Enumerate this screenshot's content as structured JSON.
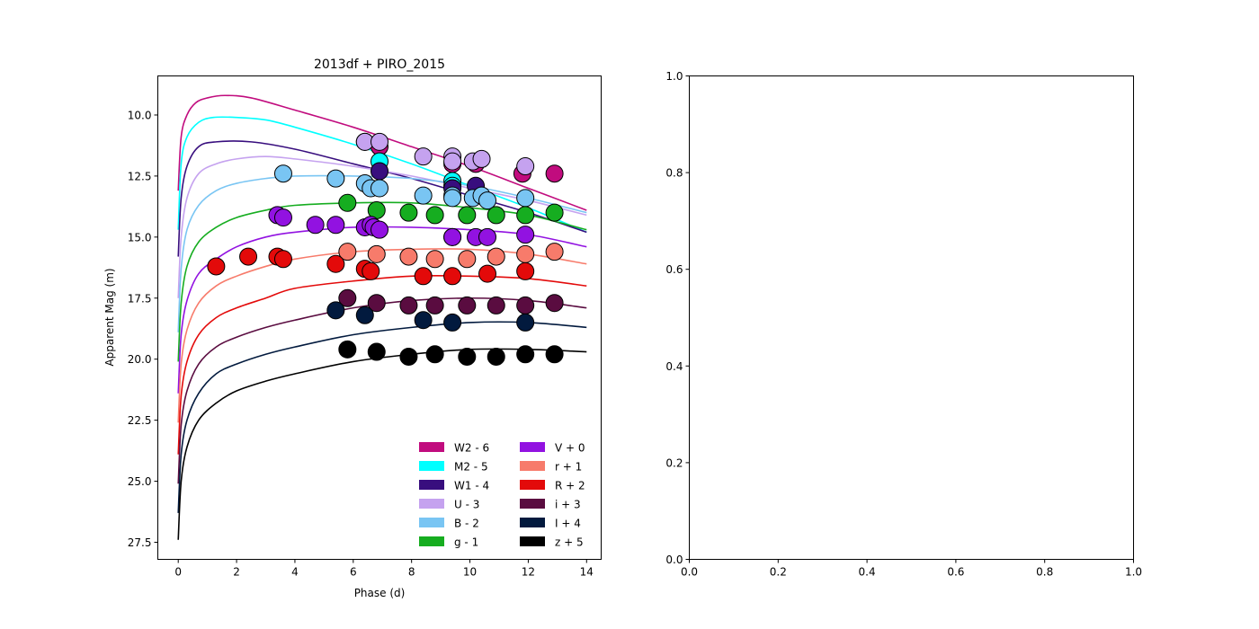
{
  "chart_data": [
    {
      "type": "line+scatter",
      "title": "2013df + PIRO_2015",
      "xlabel": "Phase (d)",
      "ylabel": "Apparent Mag (m)",
      "xlim": [
        -0.7,
        14.5
      ],
      "ylim": [
        28.2,
        8.4
      ],
      "y_inverted": true,
      "xticks": [
        0,
        2,
        4,
        6,
        8,
        10,
        12,
        14
      ],
      "yticks": [
        10.0,
        12.5,
        15.0,
        17.5,
        20.0,
        22.5,
        25.0,
        27.5
      ],
      "xtick_labels": [
        "0",
        "2",
        "4",
        "6",
        "8",
        "10",
        "12",
        "14"
      ],
      "ytick_labels": [
        "10.0",
        "12.5",
        "15.0",
        "17.5",
        "20.0",
        "22.5",
        "25.0",
        "27.5"
      ],
      "grid": false,
      "legend": {
        "placement": "lower-right",
        "columns": 2
      },
      "series": [
        {
          "name": "W2 - 6",
          "color": "#c10c7e",
          "model": [
            [
              0,
              13.1
            ],
            [
              0.1,
              10.9
            ],
            [
              0.3,
              10.0
            ],
            [
              0.6,
              9.5
            ],
            [
              1.0,
              9.3
            ],
            [
              1.6,
              9.2
            ],
            [
              2.5,
              9.3
            ],
            [
              4,
              9.8
            ],
            [
              6,
              10.5
            ],
            [
              8,
              11.3
            ],
            [
              10,
              12.1
            ],
            [
              12,
              13.0
            ],
            [
              14,
              13.9
            ]
          ],
          "points": [
            [
              6.4,
              11.1
            ],
            [
              6.9,
              11.3
            ],
            [
              9.4,
              12.0
            ],
            [
              10.2,
              12.0
            ],
            [
              11.8,
              12.4
            ],
            [
              12.9,
              12.4
            ]
          ]
        },
        {
          "name": "M2 - 5",
          "color": "#00ffff",
          "model": [
            [
              0,
              14.7
            ],
            [
              0.1,
              12.0
            ],
            [
              0.3,
              10.9
            ],
            [
              0.7,
              10.3
            ],
            [
              1.2,
              10.1
            ],
            [
              2,
              10.1
            ],
            [
              3,
              10.2
            ],
            [
              4,
              10.5
            ],
            [
              6,
              11.2
            ],
            [
              8,
              12.0
            ],
            [
              10,
              12.9
            ],
            [
              12,
              13.8
            ],
            [
              14,
              14.8
            ]
          ],
          "points": [
            [
              6.9,
              11.9
            ],
            [
              9.4,
              12.7
            ],
            [
              9.4,
              12.9
            ]
          ]
        },
        {
          "name": "W1 - 4",
          "color": "#380e7e",
          "model": [
            [
              0,
              15.8
            ],
            [
              0.1,
              13.4
            ],
            [
              0.3,
              12.1
            ],
            [
              0.7,
              11.3
            ],
            [
              1.3,
              11.1
            ],
            [
              2.5,
              11.1
            ],
            [
              4,
              11.4
            ],
            [
              6,
              12.0
            ],
            [
              8,
              12.6
            ],
            [
              10,
              13.3
            ],
            [
              12,
              14.0
            ],
            [
              14,
              14.8
            ]
          ],
          "points": [
            [
              6.9,
              12.3
            ],
            [
              9.4,
              13.0
            ],
            [
              10.2,
              12.9
            ]
          ]
        },
        {
          "name": "U - 3",
          "color": "#c5a2ef",
          "model": [
            [
              0,
              17.5
            ],
            [
              0.1,
              15.0
            ],
            [
              0.3,
              13.4
            ],
            [
              0.7,
              12.4
            ],
            [
              1.3,
              12.0
            ],
            [
              2,
              11.8
            ],
            [
              3,
              11.7
            ],
            [
              4,
              11.8
            ],
            [
              6,
              12.1
            ],
            [
              8,
              12.5
            ],
            [
              10,
              13.0
            ],
            [
              12,
              13.5
            ],
            [
              14,
              14.1
            ]
          ],
          "points": [
            [
              6.4,
              11.1
            ],
            [
              6.9,
              11.1
            ],
            [
              8.4,
              11.7
            ],
            [
              9.4,
              11.7
            ],
            [
              9.4,
              11.9
            ],
            [
              10.1,
              11.9
            ],
            [
              10.4,
              11.8
            ],
            [
              11.9,
              12.1
            ]
          ]
        },
        {
          "name": "B - 2",
          "color": "#79c5f3",
          "model": [
            [
              0,
              18.9
            ],
            [
              0.1,
              16.3
            ],
            [
              0.3,
              14.7
            ],
            [
              0.7,
              13.7
            ],
            [
              1.3,
              13.1
            ],
            [
              2,
              12.8
            ],
            [
              3,
              12.6
            ],
            [
              4,
              12.5
            ],
            [
              6,
              12.5
            ],
            [
              8,
              12.6
            ],
            [
              10,
              12.9
            ],
            [
              12,
              13.4
            ],
            [
              14,
              14.0
            ]
          ],
          "points": [
            [
              3.6,
              12.4
            ],
            [
              5.4,
              12.6
            ],
            [
              6.4,
              12.8
            ],
            [
              6.6,
              13.0
            ],
            [
              6.9,
              13.0
            ],
            [
              8.4,
              13.3
            ],
            [
              9.4,
              13.3
            ],
            [
              9.4,
              13.4
            ],
            [
              10.1,
              13.4
            ],
            [
              10.4,
              13.3
            ],
            [
              10.6,
              13.5
            ],
            [
              11.9,
              13.4
            ]
          ]
        },
        {
          "name": "g - 1",
          "color": "#16ad20",
          "model": [
            [
              0,
              20.1
            ],
            [
              0.1,
              17.7
            ],
            [
              0.3,
              16.2
            ],
            [
              0.7,
              15.2
            ],
            [
              1.3,
              14.6
            ],
            [
              2,
              14.2
            ],
            [
              3,
              13.9
            ],
            [
              4,
              13.7
            ],
            [
              6,
              13.6
            ],
            [
              8,
              13.6
            ],
            [
              10,
              13.8
            ],
            [
              12,
              14.1
            ],
            [
              14,
              14.7
            ]
          ],
          "points": [
            [
              5.8,
              13.6
            ],
            [
              6.8,
              13.9
            ],
            [
              7.9,
              14.0
            ],
            [
              8.8,
              14.1
            ],
            [
              9.9,
              14.1
            ],
            [
              10.9,
              14.1
            ],
            [
              11.9,
              14.1
            ],
            [
              12.9,
              14.0
            ]
          ]
        },
        {
          "name": "V + 0",
          "color": "#9212e1",
          "model": [
            [
              0,
              21.4
            ],
            [
              0.1,
              19.0
            ],
            [
              0.3,
              17.6
            ],
            [
              0.7,
              16.5
            ],
            [
              1.3,
              15.9
            ],
            [
              2,
              15.4
            ],
            [
              3,
              15.0
            ],
            [
              4,
              14.8
            ],
            [
              6,
              14.6
            ],
            [
              8,
              14.6
            ],
            [
              10,
              14.7
            ],
            [
              12,
              14.9
            ],
            [
              14,
              15.4
            ]
          ],
          "points": [
            [
              3.4,
              14.1
            ],
            [
              3.6,
              14.2
            ],
            [
              4.7,
              14.5
            ],
            [
              5.4,
              14.5
            ],
            [
              6.4,
              14.6
            ],
            [
              6.6,
              14.5
            ],
            [
              6.7,
              14.6
            ],
            [
              6.9,
              14.7
            ],
            [
              9.4,
              15.0
            ],
            [
              9.4,
              15.0
            ],
            [
              10.2,
              15.0
            ],
            [
              10.6,
              15.0
            ],
            [
              11.9,
              14.9
            ]
          ]
        },
        {
          "name": "r + 1",
          "color": "#f77b6b",
          "model": [
            [
              0,
              22.6
            ],
            [
              0.1,
              20.2
            ],
            [
              0.3,
              18.8
            ],
            [
              0.7,
              17.7
            ],
            [
              1.3,
              17.0
            ],
            [
              2,
              16.6
            ],
            [
              3,
              16.2
            ],
            [
              4,
              15.9
            ],
            [
              6,
              15.6
            ],
            [
              8,
              15.5
            ],
            [
              10,
              15.5
            ],
            [
              12,
              15.7
            ],
            [
              14,
              16.1
            ]
          ],
          "points": [
            [
              5.8,
              15.6
            ],
            [
              6.8,
              15.7
            ],
            [
              7.9,
              15.8
            ],
            [
              8.8,
              15.9
            ],
            [
              9.9,
              15.9
            ],
            [
              10.9,
              15.8
            ],
            [
              11.9,
              15.7
            ],
            [
              12.9,
              15.6
            ]
          ]
        },
        {
          "name": "R + 2",
          "color": "#e30a0a",
          "model": [
            [
              0,
              23.9
            ],
            [
              0.1,
              21.5
            ],
            [
              0.3,
              20.1
            ],
            [
              0.7,
              19.0
            ],
            [
              1.3,
              18.3
            ],
            [
              2,
              17.9
            ],
            [
              3,
              17.5
            ],
            [
              4,
              17.1
            ],
            [
              6,
              16.8
            ],
            [
              8,
              16.6
            ],
            [
              10,
              16.6
            ],
            [
              12,
              16.7
            ],
            [
              14,
              17.0
            ]
          ],
          "points": [
            [
              1.3,
              16.2
            ],
            [
              2.4,
              15.8
            ],
            [
              3.4,
              15.8
            ],
            [
              3.6,
              15.9
            ],
            [
              5.4,
              16.1
            ],
            [
              6.4,
              16.3
            ],
            [
              6.6,
              16.4
            ],
            [
              8.4,
              16.6
            ],
            [
              9.4,
              16.6
            ],
            [
              10.6,
              16.5
            ],
            [
              11.9,
              16.4
            ]
          ]
        },
        {
          "name": "i + 3",
          "color": "#5a0c40",
          "model": [
            [
              0,
              25.1
            ],
            [
              0.1,
              22.7
            ],
            [
              0.3,
              21.3
            ],
            [
              0.7,
              20.2
            ],
            [
              1.3,
              19.5
            ],
            [
              2,
              19.1
            ],
            [
              3,
              18.7
            ],
            [
              4,
              18.4
            ],
            [
              6,
              17.9
            ],
            [
              8,
              17.6
            ],
            [
              10,
              17.5
            ],
            [
              12,
              17.6
            ],
            [
              14,
              17.9
            ]
          ],
          "points": [
            [
              5.8,
              17.5
            ],
            [
              6.8,
              17.7
            ],
            [
              7.9,
              17.8
            ],
            [
              8.8,
              17.8
            ],
            [
              9.9,
              17.8
            ],
            [
              10.9,
              17.8
            ],
            [
              11.9,
              17.8
            ],
            [
              12.9,
              17.7
            ]
          ]
        },
        {
          "name": "I + 4",
          "color": "#021a3e",
          "model": [
            [
              0,
              26.3
            ],
            [
              0.1,
              23.9
            ],
            [
              0.3,
              22.5
            ],
            [
              0.7,
              21.4
            ],
            [
              1.3,
              20.6
            ],
            [
              2,
              20.2
            ],
            [
              3,
              19.8
            ],
            [
              4,
              19.5
            ],
            [
              6,
              19.0
            ],
            [
              8,
              18.7
            ],
            [
              10,
              18.5
            ],
            [
              12,
              18.5
            ],
            [
              14,
              18.7
            ]
          ],
          "points": [
            [
              5.4,
              18.0
            ],
            [
              6.4,
              18.2
            ],
            [
              8.4,
              18.4
            ],
            [
              9.4,
              18.5
            ],
            [
              11.9,
              18.5
            ]
          ]
        },
        {
          "name": "z + 5",
          "color": "#000000",
          "model": [
            [
              0,
              27.4
            ],
            [
              0.1,
              25.0
            ],
            [
              0.3,
              23.6
            ],
            [
              0.7,
              22.5
            ],
            [
              1.3,
              21.8
            ],
            [
              2,
              21.3
            ],
            [
              3,
              20.9
            ],
            [
              4,
              20.6
            ],
            [
              6,
              20.1
            ],
            [
              8,
              19.8
            ],
            [
              10,
              19.6
            ],
            [
              12,
              19.6
            ],
            [
              14,
              19.7
            ]
          ],
          "points": [
            [
              5.8,
              19.6
            ],
            [
              6.8,
              19.7
            ],
            [
              7.9,
              19.9
            ],
            [
              8.8,
              19.8
            ],
            [
              9.9,
              19.9
            ],
            [
              10.9,
              19.9
            ],
            [
              11.9,
              19.8
            ],
            [
              12.9,
              19.8
            ]
          ]
        }
      ]
    },
    {
      "type": "empty",
      "title": "",
      "xlim": [
        0,
        1
      ],
      "ylim": [
        0,
        1
      ],
      "xticks": [
        0.0,
        0.2,
        0.4,
        0.6,
        0.8,
        1.0
      ],
      "yticks": [
        0.0,
        0.2,
        0.4,
        0.6,
        0.8,
        1.0
      ],
      "xtick_labels": [
        "0.0",
        "0.2",
        "0.4",
        "0.6",
        "0.8",
        "1.0"
      ],
      "ytick_labels": [
        "0.0",
        "0.2",
        "0.4",
        "0.6",
        "0.8",
        "1.0"
      ],
      "grid": false
    }
  ]
}
